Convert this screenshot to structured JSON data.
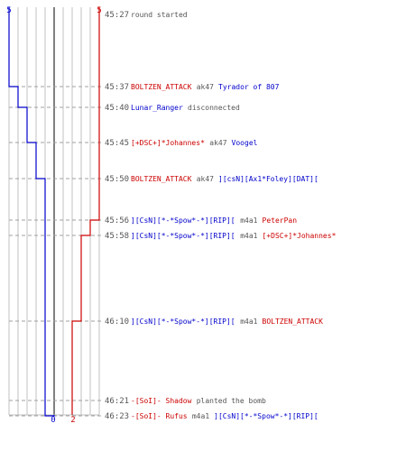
{
  "chart_data": {
    "type": "line",
    "description": "Round timeline: players remaining per team over time, with kill/event log",
    "xlim": [
      0,
      10
    ],
    "team_axis": {
      "blue_start": "5",
      "red_start": "5",
      "blue_end": "0",
      "red_end": "2"
    },
    "colors": {
      "blue": "#0000cc",
      "red": "#cc0000",
      "grid": "#c0c0c0",
      "center": "#808080",
      "dash": "#a0a0a0",
      "time": "#555555",
      "gray": "#555555"
    },
    "series": [
      {
        "name": "blue",
        "values": [
          5,
          4,
          3,
          2,
          1,
          0
        ]
      },
      {
        "name": "red",
        "values": [
          5,
          4,
          3,
          2
        ]
      }
    ],
    "events": [
      {
        "time": "45:27",
        "parts": [
          {
            "t": "round started",
            "c": "gray"
          }
        ]
      },
      {
        "time": "45:37",
        "parts": [
          {
            "t": "BOLTZEN_ATTACK",
            "c": "red"
          },
          {
            "t": " ak47 ",
            "c": "gray"
          },
          {
            "t": "Tyrador of 807",
            "c": "blue"
          }
        ],
        "blue_after": 4,
        "red_after": 5
      },
      {
        "time": "45:40",
        "parts": [
          {
            "t": "Lunar_Ranger",
            "c": "blue"
          },
          {
            "t": " disconnected",
            "c": "gray"
          }
        ],
        "blue_after": 3,
        "red_after": 5
      },
      {
        "time": "45:45",
        "parts": [
          {
            "t": "[+DSC+]*Johannes*",
            "c": "red"
          },
          {
            "t": " ak47 ",
            "c": "gray"
          },
          {
            "t": "Voogel",
            "c": "blue"
          }
        ],
        "blue_after": 2,
        "red_after": 5
      },
      {
        "time": "45:50",
        "parts": [
          {
            "t": "BOLTZEN_ATTACK",
            "c": "red"
          },
          {
            "t": " ak47 ",
            "c": "gray"
          },
          {
            "t": "][csN][Ax1*Foley][DAT][",
            "c": "blue"
          }
        ],
        "blue_after": 1,
        "red_after": 5
      },
      {
        "time": "45:56",
        "parts": [
          {
            "t": "][CsN][*-*Spow*-*][RIP][",
            "c": "blue"
          },
          {
            "t": " m4a1 ",
            "c": "gray"
          },
          {
            "t": "PeterPan",
            "c": "red"
          }
        ],
        "blue_after": 1,
        "red_after": 4
      },
      {
        "time": "45:58",
        "parts": [
          {
            "t": "][CsN][*-*Spow*-*][RIP][",
            "c": "blue"
          },
          {
            "t": " m4a1 ",
            "c": "gray"
          },
          {
            "t": "[+DSC+]*Johannes*",
            "c": "red"
          }
        ],
        "blue_after": 1,
        "red_after": 3
      },
      {
        "time": "46:10",
        "parts": [
          {
            "t": "][CsN][*-*Spow*-*][RIP][",
            "c": "blue"
          },
          {
            "t": " m4a1 ",
            "c": "gray"
          },
          {
            "t": "BOLTZEN_ATTACK",
            "c": "red"
          }
        ],
        "blue_after": 1,
        "red_after": 2
      },
      {
        "time": "46:21",
        "parts": [
          {
            "t": "-[SoI]- Shadow",
            "c": "red"
          },
          {
            "t": " planted the bomb",
            "c": "gray"
          }
        ],
        "blue_after": 1,
        "red_after": 2
      },
      {
        "time": "46:23",
        "parts": [
          {
            "t": "-[SoI]- Rufus",
            "c": "red"
          },
          {
            "t": " m4a1 ",
            "c": "gray"
          },
          {
            "t": "][CsN][*-*Spow*-*][RIP][",
            "c": "blue"
          }
        ],
        "blue_after": 0,
        "red_after": 2
      }
    ]
  }
}
